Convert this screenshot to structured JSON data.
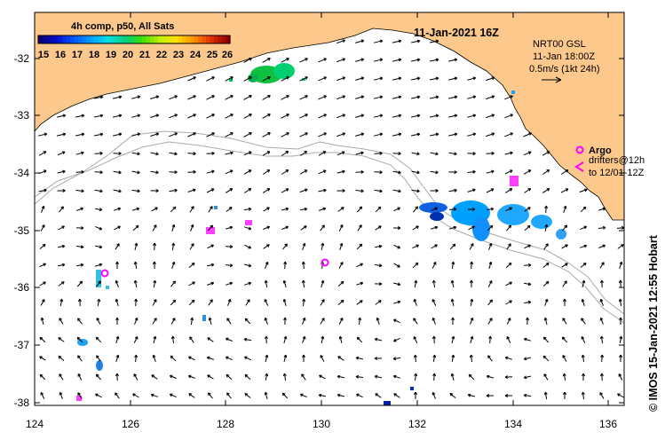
{
  "colorbar": {
    "title": "4h comp, p50, All Sats",
    "ticks": [
      "15",
      "16",
      "17",
      "18",
      "19",
      "20",
      "21",
      "22",
      "23",
      "24",
      "25",
      "26"
    ],
    "colors": [
      "#08007a",
      "#0010d0",
      "#0058ff",
      "#00a0ff",
      "#00e0e0",
      "#00d080",
      "#40e000",
      "#c0f000",
      "#ffe000",
      "#ff9000",
      "#e03000",
      "#900000"
    ]
  },
  "header": {
    "date": "11-Jan-2021 16Z"
  },
  "legend": {
    "nrt_line1": "NRT00 GSL",
    "nrt_line2": "11-Jan 18:00Z",
    "nrt_line3": "0.5m/s (1kt 24h)",
    "argo_label": "Argo",
    "drifters_line1": "drifters@12h",
    "drifters_line2": "to 12/01-12Z"
  },
  "credit": "© IMOS 15-Jan-2021 12:55 Hobart",
  "axes": {
    "lat_ticks": [
      "-32",
      "-33",
      "-34",
      "-35",
      "-36",
      "-37",
      "-38"
    ],
    "lon_ticks": [
      "124",
      "126",
      "128",
      "130",
      "132",
      "134",
      "136"
    ]
  },
  "colors": {
    "land": "#fcc88c",
    "frame": "#000000",
    "bathy": "#aaaaaa",
    "argo": "#ff00ff",
    "arrow": "#000000"
  }
}
